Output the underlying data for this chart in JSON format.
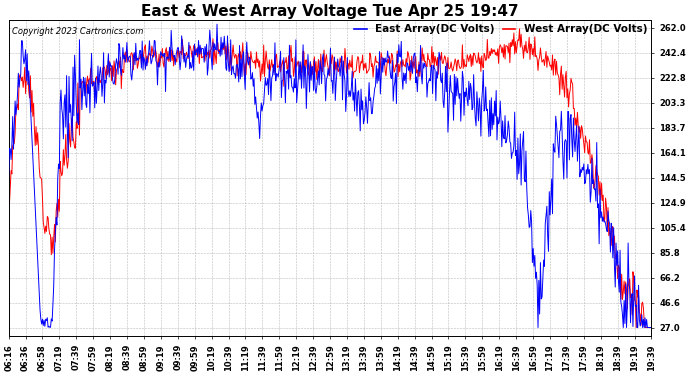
{
  "title": "East & West Array Voltage Tue Apr 25 19:47",
  "copyright": "Copyright 2023 Cartronics.com",
  "legend_east": "East Array(DC Volts)",
  "legend_west": "West Array(DC Volts)",
  "color_east": "#0000ff",
  "color_west": "#ff0000",
  "background_color": "#ffffff",
  "grid_color": "#bbbbbb",
  "yticks": [
    27.0,
    46.6,
    66.2,
    85.8,
    105.4,
    124.9,
    144.5,
    164.1,
    183.7,
    203.3,
    222.8,
    242.4,
    262.0
  ],
  "ymin": 20.0,
  "ymax": 268.0,
  "xtick_labels": [
    "06:16",
    "06:36",
    "06:58",
    "07:19",
    "07:39",
    "07:59",
    "08:19",
    "08:39",
    "08:59",
    "09:19",
    "09:39",
    "09:59",
    "10:19",
    "10:39",
    "11:19",
    "11:39",
    "11:59",
    "12:19",
    "12:39",
    "12:59",
    "13:19",
    "13:39",
    "13:59",
    "14:19",
    "14:39",
    "14:59",
    "15:19",
    "15:39",
    "15:59",
    "16:19",
    "16:39",
    "16:59",
    "17:19",
    "17:39",
    "17:59",
    "18:19",
    "18:39",
    "19:19",
    "19:39"
  ],
  "title_fontsize": 11,
  "axis_fontsize": 6,
  "copyright_fontsize": 6,
  "legend_fontsize": 7.5
}
